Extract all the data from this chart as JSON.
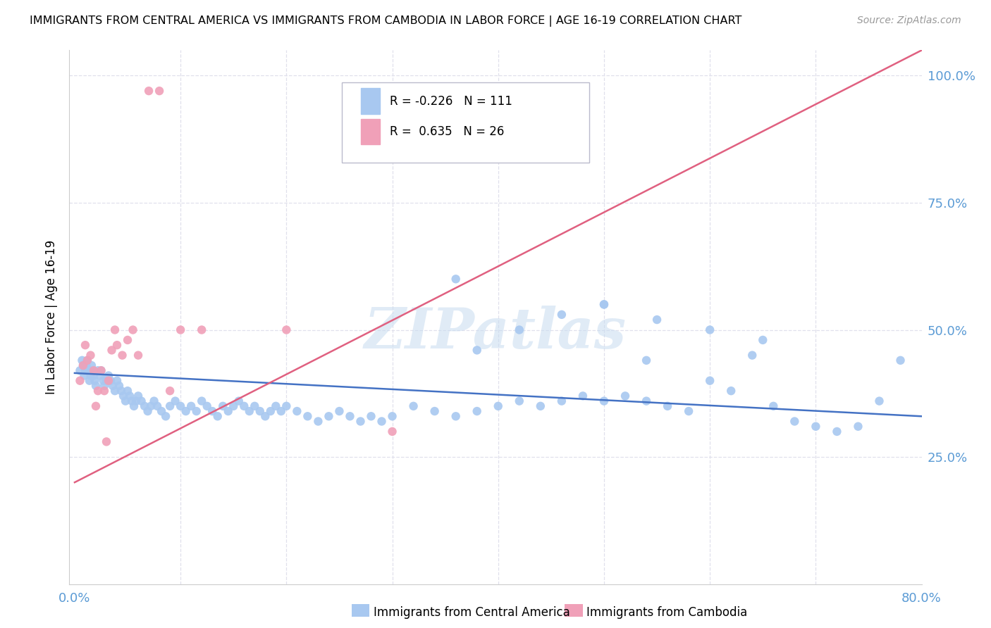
{
  "title": "IMMIGRANTS FROM CENTRAL AMERICA VS IMMIGRANTS FROM CAMBODIA IN LABOR FORCE | AGE 16-19 CORRELATION CHART",
  "source": "Source: ZipAtlas.com",
  "ylabel": "In Labor Force | Age 16-19",
  "blue_color": "#A8C8F0",
  "pink_color": "#F0A0B8",
  "blue_line_color": "#4472C4",
  "pink_line_color": "#E06080",
  "watermark": "ZIPatlas",
  "background_color": "#FFFFFF",
  "grid_color": "#E0E0EC",
  "xlim": [
    0.0,
    0.8
  ],
  "ylim": [
    0.0,
    1.05
  ],
  "yticks": [
    0.25,
    0.5,
    0.75,
    1.0
  ],
  "ytick_labels": [
    "25.0%",
    "50.0%",
    "75.0%",
    "100.0%"
  ],
  "xtick_left": "0.0%",
  "xtick_right": "80.0%",
  "legend_blue_r": "R = -0.226",
  "legend_blue_n": "N = 111",
  "legend_pink_r": "R =  0.635",
  "legend_pink_n": "N = 26",
  "blue_trend_x": [
    0.0,
    0.8
  ],
  "blue_trend_y": [
    0.415,
    0.33
  ],
  "pink_trend_x": [
    0.0,
    0.8
  ],
  "pink_trend_y": [
    0.2,
    1.05
  ],
  "blue_x": [
    0.005,
    0.007,
    0.008,
    0.009,
    0.01,
    0.011,
    0.012,
    0.013,
    0.014,
    0.015,
    0.016,
    0.017,
    0.018,
    0.019,
    0.02,
    0.022,
    0.024,
    0.025,
    0.027,
    0.028,
    0.03,
    0.032,
    0.034,
    0.036,
    0.038,
    0.04,
    0.042,
    0.044,
    0.046,
    0.048,
    0.05,
    0.052,
    0.054,
    0.056,
    0.058,
    0.06,
    0.063,
    0.066,
    0.069,
    0.072,
    0.075,
    0.078,
    0.082,
    0.086,
    0.09,
    0.095,
    0.1,
    0.105,
    0.11,
    0.115,
    0.12,
    0.125,
    0.13,
    0.135,
    0.14,
    0.145,
    0.15,
    0.155,
    0.16,
    0.165,
    0.17,
    0.175,
    0.18,
    0.185,
    0.19,
    0.195,
    0.2,
    0.21,
    0.22,
    0.23,
    0.24,
    0.25,
    0.26,
    0.27,
    0.28,
    0.29,
    0.3,
    0.32,
    0.34,
    0.36,
    0.38,
    0.4,
    0.42,
    0.44,
    0.46,
    0.48,
    0.5,
    0.52,
    0.54,
    0.56,
    0.58,
    0.6,
    0.62,
    0.64,
    0.66,
    0.68,
    0.7,
    0.72,
    0.74,
    0.76,
    0.78,
    0.5,
    0.55,
    0.6,
    0.65,
    0.36,
    0.38,
    0.42,
    0.46,
    0.5,
    0.54
  ],
  "blue_y": [
    0.42,
    0.44,
    0.43,
    0.41,
    0.42,
    0.43,
    0.44,
    0.42,
    0.4,
    0.41,
    0.43,
    0.42,
    0.41,
    0.4,
    0.39,
    0.42,
    0.41,
    0.42,
    0.4,
    0.39,
    0.4,
    0.41,
    0.4,
    0.39,
    0.38,
    0.4,
    0.39,
    0.38,
    0.37,
    0.36,
    0.38,
    0.37,
    0.36,
    0.35,
    0.36,
    0.37,
    0.36,
    0.35,
    0.34,
    0.35,
    0.36,
    0.35,
    0.34,
    0.33,
    0.35,
    0.36,
    0.35,
    0.34,
    0.35,
    0.34,
    0.36,
    0.35,
    0.34,
    0.33,
    0.35,
    0.34,
    0.35,
    0.36,
    0.35,
    0.34,
    0.35,
    0.34,
    0.33,
    0.34,
    0.35,
    0.34,
    0.35,
    0.34,
    0.33,
    0.32,
    0.33,
    0.34,
    0.33,
    0.32,
    0.33,
    0.32,
    0.33,
    0.35,
    0.34,
    0.33,
    0.34,
    0.35,
    0.36,
    0.35,
    0.36,
    0.37,
    0.36,
    0.37,
    0.36,
    0.35,
    0.34,
    0.4,
    0.38,
    0.45,
    0.35,
    0.32,
    0.31,
    0.3,
    0.31,
    0.36,
    0.44,
    0.55,
    0.52,
    0.5,
    0.48,
    0.6,
    0.46,
    0.5,
    0.53,
    0.55,
    0.44
  ],
  "pink_x": [
    0.005,
    0.008,
    0.01,
    0.012,
    0.015,
    0.018,
    0.02,
    0.022,
    0.025,
    0.028,
    0.03,
    0.032,
    0.035,
    0.038,
    0.04,
    0.045,
    0.05,
    0.055,
    0.06,
    0.07,
    0.08,
    0.09,
    0.1,
    0.12,
    0.2,
    0.3
  ],
  "pink_y": [
    0.4,
    0.43,
    0.47,
    0.44,
    0.45,
    0.42,
    0.35,
    0.38,
    0.42,
    0.38,
    0.28,
    0.4,
    0.46,
    0.5,
    0.47,
    0.45,
    0.48,
    0.5,
    0.45,
    0.97,
    0.97,
    0.38,
    0.5,
    0.5,
    0.5,
    0.3
  ]
}
